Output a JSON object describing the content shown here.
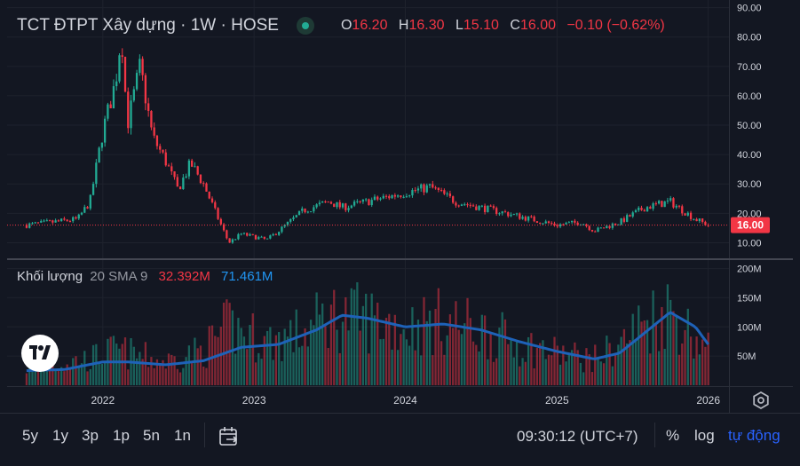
{
  "header": {
    "symbol_title": "TCT ĐTPT Xây dựng · 1W · HOSE",
    "ohlc": {
      "o_label": "O",
      "o": "16.20",
      "h_label": "H",
      "h": "16.30",
      "l_label": "L",
      "l": "15.10",
      "c_label": "C",
      "c": "16.00",
      "change": "−0.10 (−0.62%)"
    }
  },
  "volume_legend": {
    "label": "Khối lượng",
    "params": "20 SMA 9",
    "vol_value": "32.392M",
    "sma_value": "71.461M"
  },
  "toolbar": {
    "ranges": [
      "5y",
      "1y",
      "3p",
      "1p",
      "5n",
      "1n"
    ],
    "clock": "09:30:12 (UTC+7)",
    "percent_label": "%",
    "log_label": "log",
    "auto_label": "tự động"
  },
  "colors": {
    "up": "#22ab94",
    "down": "#f23645",
    "sma": "#2962ff",
    "background": "#131722",
    "grid": "#1e222d"
  },
  "chart_data": [
    {
      "type": "candlestick",
      "title": "TCT ĐTPT Xây dựng · 1W · HOSE",
      "interval": "1W",
      "ylim": [
        5,
        92
      ],
      "y_ticks": [
        10,
        20,
        30,
        40,
        50,
        60,
        70,
        80,
        90
      ],
      "y_tick_labels": [
        "10.00",
        "20.00",
        "30.00",
        "40.00",
        "50.00",
        "60.00",
        "70.00",
        "80.00",
        "90.00"
      ],
      "x_tick_labels": [
        "2022",
        "2023",
        "2024",
        "2025",
        "2026"
      ],
      "last_price": "16.00",
      "close_path": [
        [
          "2021-07",
          16
        ],
        [
          "2021-09",
          17
        ],
        [
          "2021-11",
          18
        ],
        [
          "2021-12",
          24
        ],
        [
          "2022-01",
          48
        ],
        [
          "2022-02",
          65
        ],
        [
          "2022-02-15",
          82
        ],
        [
          "2022-03",
          50
        ],
        [
          "2022-04",
          70
        ],
        [
          "2022-05",
          46
        ],
        [
          "2022-06",
          38
        ],
        [
          "2022-07",
          28
        ],
        [
          "2022-08",
          37
        ],
        [
          "2022-09",
          30
        ],
        [
          "2022-10",
          20
        ],
        [
          "2022-11",
          10
        ],
        [
          "2022-12",
          13
        ],
        [
          "2023-02",
          11
        ],
        [
          "2023-03",
          14
        ],
        [
          "2023-05",
          21
        ],
        [
          "2023-07",
          24
        ],
        [
          "2023-08",
          22
        ],
        [
          "2023-10",
          24
        ],
        [
          "2023-12",
          26
        ],
        [
          "2024-03",
          29
        ],
        [
          "2024-05",
          24
        ],
        [
          "2024-07",
          22
        ],
        [
          "2024-09",
          20
        ],
        [
          "2024-11",
          18
        ],
        [
          "2025-01",
          16
        ],
        [
          "2025-03",
          17
        ],
        [
          "2025-04",
          14
        ],
        [
          "2025-06",
          17
        ],
        [
          "2025-08",
          22
        ],
        [
          "2025-10",
          24
        ],
        [
          "2025-12",
          18
        ],
        [
          "2026-01",
          16
        ]
      ]
    },
    {
      "type": "bar",
      "title": "Khối lượng",
      "series": [
        {
          "name": "SMA 9",
          "type": "line"
        }
      ],
      "ylim": [
        0,
        210
      ],
      "y_ticks": [
        50,
        100,
        150,
        200
      ],
      "y_tick_labels": [
        "50M",
        "100M",
        "150M",
        "200M"
      ],
      "volume_path_M": [
        [
          "2021-07",
          30
        ],
        [
          "2021-09",
          35
        ],
        [
          "2021-12",
          45
        ],
        [
          "2022-02",
          60
        ],
        [
          "2022-06",
          40
        ],
        [
          "2022-09",
          60
        ],
        [
          "2022-11",
          100
        ],
        [
          "2023-02",
          75
        ],
        [
          "2023-05",
          90
        ],
        [
          "2023-07",
          120
        ],
        [
          "2023-10",
          115
        ],
        [
          "2024-01",
          100
        ],
        [
          "2024-04",
          110
        ],
        [
          "2024-07",
          95
        ],
        [
          "2024-10",
          70
        ],
        [
          "2025-01",
          55
        ],
        [
          "2025-04",
          45
        ],
        [
          "2025-06",
          70
        ],
        [
          "2025-08",
          110
        ],
        [
          "2025-10",
          130
        ],
        [
          "2025-12",
          80
        ],
        [
          "2026-01",
          60
        ]
      ],
      "sma_path_M": [
        [
          "2021-07",
          25
        ],
        [
          "2021-10",
          27
        ],
        [
          "2022-01",
          40
        ],
        [
          "2022-03",
          40
        ],
        [
          "2022-06",
          35
        ],
        [
          "2022-09",
          42
        ],
        [
          "2022-12",
          65
        ],
        [
          "2023-03",
          70
        ],
        [
          "2023-06",
          95
        ],
        [
          "2023-08",
          120
        ],
        [
          "2023-10",
          115
        ],
        [
          "2024-01",
          100
        ],
        [
          "2024-04",
          105
        ],
        [
          "2024-07",
          95
        ],
        [
          "2024-10",
          75
        ],
        [
          "2025-01",
          58
        ],
        [
          "2025-04",
          45
        ],
        [
          "2025-06",
          55
        ],
        [
          "2025-08",
          90
        ],
        [
          "2025-10",
          125
        ],
        [
          "2025-12",
          100
        ],
        [
          "2026-01",
          70
        ]
      ],
      "last_volume": "32.392M",
      "last_sma": "71.461M"
    }
  ]
}
